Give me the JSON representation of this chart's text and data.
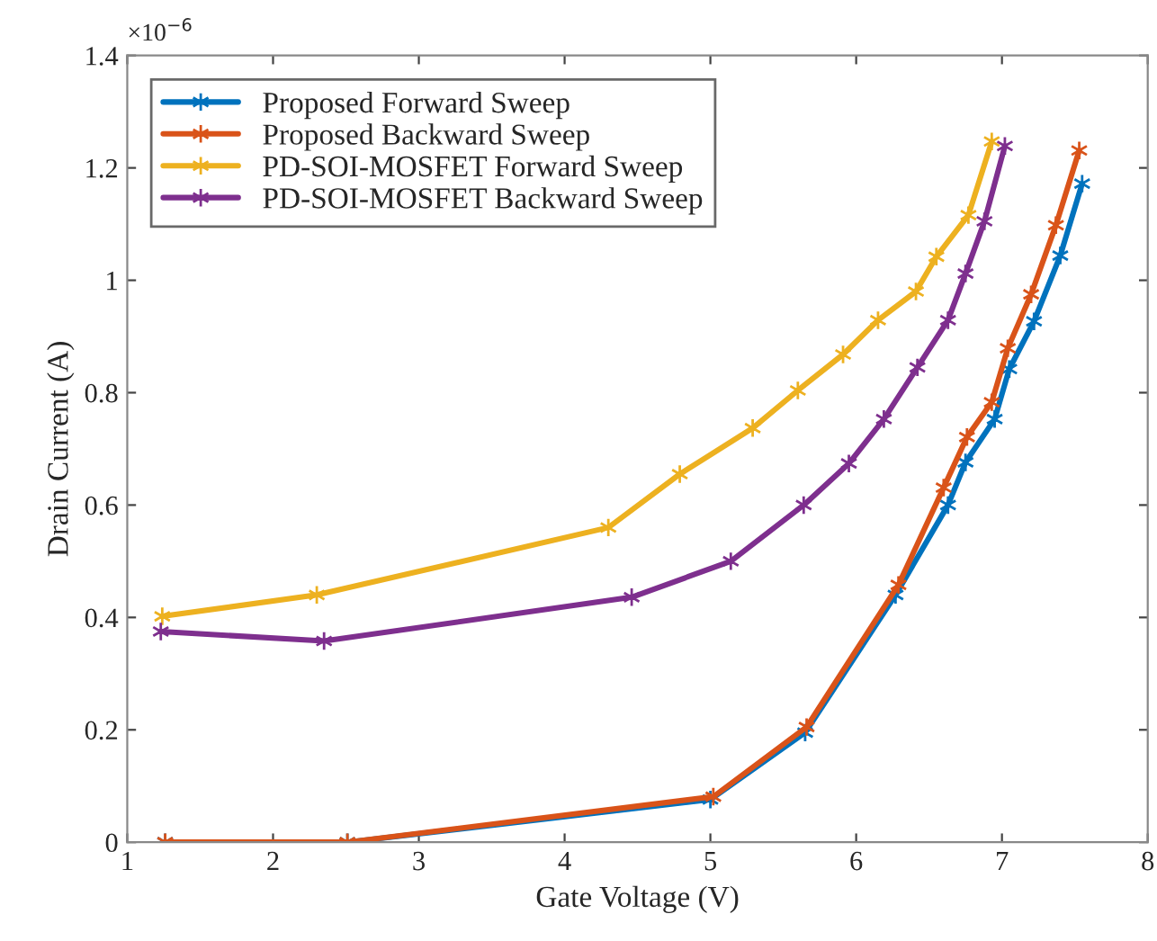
{
  "chart_data": {
    "type": "line",
    "xlabel": "Gate Voltage (V)",
    "ylabel": "Drain Current (A)",
    "annotations": [
      "×10$^{−6}$"
    ],
    "xlim": [
      1,
      8
    ],
    "xticks": [
      1,
      2,
      3,
      4,
      5,
      6,
      7,
      8
    ],
    "ylim": [
      0,
      1.4
    ],
    "yticks": [
      0,
      0.2,
      0.4,
      0.6,
      0.8,
      1,
      1.2,
      1.4
    ],
    "grid": false,
    "legend": "top left",
    "marker": "cross",
    "line_style": "solid",
    "series": [
      {
        "name": "Proposed Forward Sweep",
        "color": "#0072bd",
        "x": [
          1.26,
          2.51,
          5.0,
          5.65,
          6.27,
          6.63,
          6.75,
          6.95,
          7.05,
          7.22,
          7.4,
          7.55
        ],
        "values": [
          0,
          0,
          0.076,
          0.195,
          0.44,
          0.6,
          0.676,
          0.753,
          0.842,
          0.927,
          1.044,
          1.172
        ]
      },
      {
        "name": "Proposed Backward Sweep",
        "color": "#d95319",
        "x": [
          1.26,
          2.51,
          5.02,
          5.66,
          6.29,
          6.6,
          6.76,
          6.93,
          7.04,
          7.2,
          7.37,
          7.53
        ],
        "values": [
          0,
          0,
          0.081,
          0.205,
          0.458,
          0.631,
          0.721,
          0.783,
          0.879,
          0.975,
          1.098,
          1.231
        ]
      },
      {
        "name": "PD-SOI-MOSFET Forward Sweep",
        "color": "#edb120",
        "x": [
          1.24,
          2.3,
          4.3,
          4.79,
          5.29,
          5.6,
          5.91,
          6.15,
          6.41,
          6.55,
          6.77,
          6.93
        ],
        "values": [
          0.402,
          0.44,
          0.56,
          0.655,
          0.737,
          0.804,
          0.868,
          0.929,
          0.98,
          1.042,
          1.116,
          1.247
        ]
      },
      {
        "name": "PD-SOI-MOSFET Backward Sweep",
        "color": "#7e2f8e",
        "x": [
          1.23,
          2.35,
          4.46,
          5.14,
          5.64,
          5.95,
          6.19,
          6.42,
          6.63,
          6.75,
          6.88,
          7.02
        ],
        "values": [
          0.375,
          0.358,
          0.436,
          0.5,
          0.6,
          0.674,
          0.753,
          0.845,
          0.929,
          1.012,
          1.105,
          1.239
        ]
      }
    ]
  }
}
